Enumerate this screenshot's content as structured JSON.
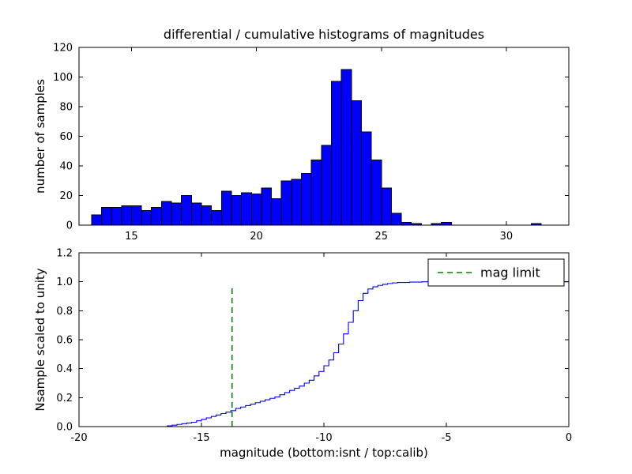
{
  "figure": {
    "background": "#ffffff",
    "title": "differential / cumulative histograms of magnitudes",
    "xlabel": "magnitude (bottom:isnt / top:calib)"
  },
  "chart_data": [
    {
      "type": "bar",
      "title": "differential / cumulative histograms of magnitudes",
      "ylabel": "number of samples",
      "xlim": [
        12.9,
        32.5
      ],
      "ylim": [
        0,
        120
      ],
      "xticks": [
        15,
        20,
        25,
        30
      ],
      "xtick_labels": [
        "15",
        "20",
        "25",
        "30"
      ],
      "yticks": [
        0,
        20,
        40,
        60,
        80,
        100,
        120
      ],
      "ytick_labels": [
        "0",
        "20",
        "40",
        "60",
        "80",
        "100",
        "120"
      ],
      "grid": false,
      "bin_start": 13.4,
      "bin_width": 0.4,
      "values": [
        7,
        12,
        12,
        13,
        13,
        10,
        12,
        16,
        15,
        20,
        15,
        13,
        10,
        23,
        20,
        22,
        21,
        25,
        18,
        30,
        31,
        35,
        44,
        54,
        97,
        105,
        84,
        63,
        44,
        25,
        8,
        2,
        1,
        0,
        1,
        2,
        0,
        0,
        0,
        0,
        0,
        0,
        0,
        0,
        1,
        0
      ],
      "bar_fill": "#0000ff",
      "bar_edge": "#000000"
    },
    {
      "type": "line",
      "title": "",
      "ylabel": "Nsample scaled to unity",
      "xlabel": "magnitude (bottom:isnt / top:calib)",
      "xlim": [
        -20,
        0
      ],
      "ylim": [
        0,
        1.2
      ],
      "xticks": [
        -20,
        -15,
        -10,
        -5,
        0
      ],
      "xtick_labels": [
        "-20",
        "-15",
        "-10",
        "-5",
        "0"
      ],
      "yticks": [
        0,
        0.2,
        0.4,
        0.6,
        0.8,
        1.0,
        1.2
      ],
      "ytick_labels": [
        "0.0",
        "0.2",
        "0.4",
        "0.6",
        "0.8",
        "1.0",
        "1.2"
      ],
      "grid": false,
      "line_color": "#0000ff",
      "points": [
        [
          -16.6,
          0.0
        ],
        [
          -16.4,
          0.005
        ],
        [
          -16.2,
          0.01
        ],
        [
          -16.0,
          0.015
        ],
        [
          -15.8,
          0.02
        ],
        [
          -15.6,
          0.025
        ],
        [
          -15.4,
          0.03
        ],
        [
          -15.2,
          0.04
        ],
        [
          -15.0,
          0.05
        ],
        [
          -14.8,
          0.06
        ],
        [
          -14.6,
          0.07
        ],
        [
          -14.4,
          0.08
        ],
        [
          -14.2,
          0.09
        ],
        [
          -14.0,
          0.1
        ],
        [
          -13.8,
          0.11
        ],
        [
          -13.6,
          0.125
        ],
        [
          -13.4,
          0.135
        ],
        [
          -13.2,
          0.145
        ],
        [
          -13.0,
          0.155
        ],
        [
          -12.8,
          0.165
        ],
        [
          -12.6,
          0.175
        ],
        [
          -12.4,
          0.185
        ],
        [
          -12.2,
          0.195
        ],
        [
          -12.0,
          0.205
        ],
        [
          -11.8,
          0.22
        ],
        [
          -11.6,
          0.235
        ],
        [
          -11.4,
          0.25
        ],
        [
          -11.2,
          0.265
        ],
        [
          -11.0,
          0.28
        ],
        [
          -10.8,
          0.3
        ],
        [
          -10.6,
          0.32
        ],
        [
          -10.4,
          0.35
        ],
        [
          -10.2,
          0.38
        ],
        [
          -10.0,
          0.42
        ],
        [
          -9.8,
          0.46
        ],
        [
          -9.6,
          0.51
        ],
        [
          -9.4,
          0.57
        ],
        [
          -9.2,
          0.64
        ],
        [
          -9.0,
          0.72
        ],
        [
          -8.8,
          0.8
        ],
        [
          -8.6,
          0.87
        ],
        [
          -8.4,
          0.92
        ],
        [
          -8.2,
          0.95
        ],
        [
          -8.0,
          0.965
        ],
        [
          -7.8,
          0.975
        ],
        [
          -7.6,
          0.982
        ],
        [
          -7.4,
          0.988
        ],
        [
          -7.2,
          0.992
        ],
        [
          -7.0,
          0.995
        ],
        [
          -6.5,
          0.998
        ],
        [
          -6.0,
          1.0
        ],
        [
          0.0,
          1.0
        ]
      ],
      "vline": {
        "x": -13.75,
        "ymin": 0.0,
        "ymax": 0.97,
        "color": "#008000",
        "dash": true,
        "label": "mag limit"
      },
      "legend": {
        "location": "upper right",
        "entries": [
          {
            "label": "mag limit",
            "color": "#008000",
            "dash": true
          }
        ]
      }
    }
  ]
}
